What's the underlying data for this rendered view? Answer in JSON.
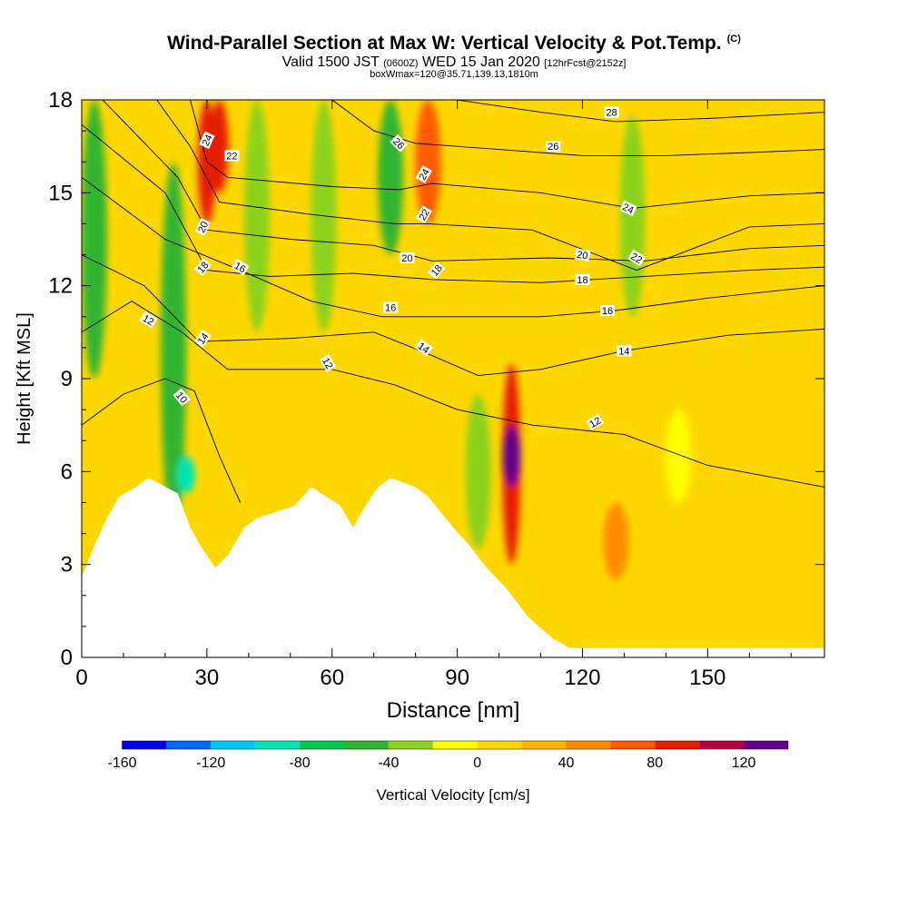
{
  "title": {
    "main": "Wind-Parallel Section at Max W: Vertical Velocity & Pot.Temp.",
    "copyright": "(C)",
    "valid_prefix": "Valid 1500 JST",
    "valid_utc": "(0600Z)",
    "valid_suffix": "WED 15 Jan 2020",
    "forecast": "[12hrFcst@2152z]",
    "box_info": "boxWmax=120@35.71,139.13,1810m"
  },
  "chart_data": {
    "type": "heatmap",
    "xlabel": "Distance [nm]",
    "ylabel": "Height [Kft MSL]",
    "xlim": [
      0,
      178
    ],
    "ylim": [
      0,
      18
    ],
    "x_ticks": [
      0,
      30,
      60,
      90,
      120,
      150
    ],
    "y_ticks": [
      0,
      3,
      6,
      9,
      12,
      15,
      18
    ],
    "colorbar": {
      "label": "Vertical Velocity [cm/s]",
      "min": -160,
      "max": 140,
      "step": 20,
      "tick_labels": [
        -160,
        -120,
        -80,
        -40,
        0,
        40,
        80,
        120
      ],
      "colors": [
        "#0000ff",
        "#0066ff",
        "#00c8ff",
        "#00e6b4",
        "#00c850",
        "#32b432",
        "#8cd21e",
        "#ffff00",
        "#ffd700",
        "#ffb400",
        "#ff8c00",
        "#ff5a00",
        "#e61e00",
        "#b4003c",
        "#64008c"
      ]
    },
    "vertical_velocity_features": [
      {
        "x": 3,
        "height_range": [
          9,
          18
        ],
        "value": -60
      },
      {
        "x": 22,
        "height_range": [
          4,
          16
        ],
        "value": -60
      },
      {
        "x": 25,
        "height_range": [
          5.3,
          6.5
        ],
        "value": -90
      },
      {
        "x": 30,
        "height_range": [
          14,
          18
        ],
        "value": 80
      },
      {
        "x": 33,
        "height_range": [
          15,
          18
        ],
        "value": 80
      },
      {
        "x": 42,
        "height_range": [
          10.5,
          18
        ],
        "value": -40
      },
      {
        "x": 58,
        "height_range": [
          10.5,
          18
        ],
        "value": -40
      },
      {
        "x": 74,
        "height_range": [
          13,
          18
        ],
        "value": -50
      },
      {
        "x": 83,
        "height_range": [
          14,
          18
        ],
        "value": 70
      },
      {
        "x": 95,
        "height_range": [
          3.5,
          8.5
        ],
        "value": -30
      },
      {
        "x": 103,
        "height_range": [
          3,
          9.5
        ],
        "value": 90
      },
      {
        "x": 103,
        "height_range": [
          5.5,
          7.5
        ],
        "value": 120
      },
      {
        "x": 128,
        "height_range": [
          2.5,
          5
        ],
        "value": 50
      },
      {
        "x": 132,
        "height_range": [
          11,
          17.5
        ],
        "value": -30
      },
      {
        "x": 143,
        "height_range": [
          5,
          8
        ],
        "value": -20
      },
      {
        "x": 175,
        "height_range": [
          11,
          17
        ],
        "value": 10
      }
    ],
    "terrain_top": [
      {
        "x": 0,
        "y": 2.6
      },
      {
        "x": 3,
        "y": 3.6
      },
      {
        "x": 6,
        "y": 4.5
      },
      {
        "x": 9,
        "y": 5.2
      },
      {
        "x": 13,
        "y": 5.5
      },
      {
        "x": 16,
        "y": 5.8
      },
      {
        "x": 23,
        "y": 5.3
      },
      {
        "x": 26,
        "y": 4.2
      },
      {
        "x": 28.5,
        "y": 3.6
      },
      {
        "x": 32,
        "y": 2.9
      },
      {
        "x": 35,
        "y": 3.3
      },
      {
        "x": 39,
        "y": 4.2
      },
      {
        "x": 42,
        "y": 4.5
      },
      {
        "x": 51,
        "y": 4.9
      },
      {
        "x": 55,
        "y": 5.5
      },
      {
        "x": 62,
        "y": 4.9
      },
      {
        "x": 65,
        "y": 4.2
      },
      {
        "x": 68,
        "y": 4.9
      },
      {
        "x": 71,
        "y": 5.5
      },
      {
        "x": 74,
        "y": 5.8
      },
      {
        "x": 80,
        "y": 5.5
      },
      {
        "x": 83,
        "y": 5.2
      },
      {
        "x": 89,
        "y": 4.2
      },
      {
        "x": 93,
        "y": 3.6
      },
      {
        "x": 97,
        "y": 2.9
      },
      {
        "x": 102,
        "y": 2.2
      },
      {
        "x": 107,
        "y": 1.3
      },
      {
        "x": 113,
        "y": 0.6
      },
      {
        "x": 117,
        "y": 0.3
      },
      {
        "x": 178,
        "y": 0.3
      }
    ],
    "theta_contours": [
      {
        "label": "10",
        "points": [
          [
            0,
            7.5
          ],
          [
            10,
            8.5
          ],
          [
            20,
            9
          ],
          [
            27,
            8.6
          ],
          [
            33,
            6.5
          ],
          [
            38,
            5
          ]
        ]
      },
      {
        "label": "12",
        "points": [
          [
            0,
            10.5
          ],
          [
            12,
            11.5
          ],
          [
            24,
            10.5
          ],
          [
            35,
            9.3
          ],
          [
            50,
            9.3
          ],
          [
            60,
            9.3
          ],
          [
            75,
            8.8
          ],
          [
            90,
            8.0
          ],
          [
            108,
            7.5
          ],
          [
            130,
            7.2
          ],
          [
            150,
            6.2
          ],
          [
            178,
            5.5
          ]
        ]
      },
      {
        "label": "14",
        "points": [
          [
            0,
            13
          ],
          [
            15,
            12
          ],
          [
            28,
            10.2
          ],
          [
            50,
            10.3
          ],
          [
            70,
            10.5
          ],
          [
            83,
            9.8
          ],
          [
            95,
            9.1
          ],
          [
            110,
            9.3
          ],
          [
            130,
            9.9
          ],
          [
            155,
            10.4
          ],
          [
            178,
            10.6
          ]
        ]
      },
      {
        "label": "16",
        "points": [
          [
            0,
            15.5
          ],
          [
            20,
            13.5
          ],
          [
            38,
            12.5
          ],
          [
            55,
            11.5
          ],
          [
            72,
            11
          ],
          [
            90,
            11
          ],
          [
            110,
            11
          ],
          [
            128,
            11.2
          ],
          [
            150,
            11.6
          ],
          [
            178,
            12
          ]
        ]
      },
      {
        "label": "18",
        "points": [
          [
            0,
            17.2
          ],
          [
            20,
            15
          ],
          [
            30,
            12.5
          ],
          [
            45,
            12.3
          ],
          [
            65,
            12.4
          ],
          [
            84,
            12.2
          ],
          [
            110,
            12.1
          ],
          [
            135,
            12.3
          ],
          [
            160,
            12.5
          ],
          [
            178,
            12.6
          ]
        ]
      },
      {
        "label": "20",
        "points": [
          [
            5,
            18
          ],
          [
            23,
            15.5
          ],
          [
            30,
            13.8
          ],
          [
            50,
            13.5
          ],
          [
            70,
            13.3
          ],
          [
            84,
            12.8
          ],
          [
            112,
            12.9
          ],
          [
            135,
            12.8
          ],
          [
            160,
            13.2
          ],
          [
            178,
            13.3
          ]
        ]
      },
      {
        "label": "22",
        "points": [
          [
            18,
            18
          ],
          [
            26,
            16.5
          ],
          [
            33,
            14.7
          ],
          [
            55,
            14.3
          ],
          [
            75,
            14
          ],
          [
            83,
            14
          ],
          [
            108,
            13.8
          ],
          [
            133,
            12.5
          ],
          [
            160,
            13.9
          ],
          [
            178,
            14
          ]
        ]
      },
      {
        "label": "24",
        "points": [
          [
            26,
            18
          ],
          [
            30,
            16
          ],
          [
            35,
            15.5
          ],
          [
            60,
            15.2
          ],
          [
            76,
            15.1
          ],
          [
            84,
            15.3
          ],
          [
            110,
            15
          ],
          [
            132,
            14.5
          ],
          [
            160,
            14.9
          ],
          [
            178,
            15
          ]
        ]
      },
      {
        "label": "26",
        "points": [
          [
            60,
            18
          ],
          [
            70,
            17
          ],
          [
            80,
            16.6
          ],
          [
            100,
            16.4
          ],
          [
            120,
            16.2
          ],
          [
            140,
            16.2
          ],
          [
            160,
            16.3
          ],
          [
            178,
            16.4
          ]
        ]
      },
      {
        "label": "28",
        "points": [
          [
            90,
            18
          ],
          [
            110,
            17.6
          ],
          [
            128,
            17.3
          ],
          [
            150,
            17.4
          ],
          [
            178,
            17.6
          ]
        ]
      }
    ],
    "contour_labels": [
      {
        "text": "10",
        "x": 24,
        "y": 8.4,
        "angle": 50
      },
      {
        "text": "12",
        "x": 16,
        "y": 10.9,
        "angle": 30
      },
      {
        "text": "12",
        "x": 59,
        "y": 9.5,
        "angle": 60
      },
      {
        "text": "12",
        "x": 123,
        "y": 7.6,
        "angle": -30
      },
      {
        "text": "14",
        "x": 29,
        "y": 10.3,
        "angle": -55
      },
      {
        "text": "14",
        "x": 82,
        "y": 10.0,
        "angle": 35
      },
      {
        "text": "14",
        "x": 130,
        "y": 9.9,
        "angle": 0
      },
      {
        "text": "16",
        "x": 38,
        "y": 12.6,
        "angle": 30
      },
      {
        "text": "16",
        "x": 74,
        "y": 11.3,
        "angle": 0
      },
      {
        "text": "16",
        "x": 126,
        "y": 11.2,
        "angle": 0
      },
      {
        "text": "18",
        "x": 29,
        "y": 12.6,
        "angle": -50
      },
      {
        "text": "18",
        "x": 85,
        "y": 12.5,
        "angle": -50
      },
      {
        "text": "18",
        "x": 120,
        "y": 12.2,
        "angle": 0
      },
      {
        "text": "20",
        "x": 29,
        "y": 13.9,
        "angle": -65
      },
      {
        "text": "20",
        "x": 78,
        "y": 12.9,
        "angle": 0
      },
      {
        "text": "20",
        "x": 120,
        "y": 13.0,
        "angle": 10
      },
      {
        "text": "22",
        "x": 36,
        "y": 16.2,
        "angle": 0
      },
      {
        "text": "22",
        "x": 82,
        "y": 14.3,
        "angle": -60
      },
      {
        "text": "22",
        "x": 133,
        "y": 12.9,
        "angle": 30
      },
      {
        "text": "24",
        "x": 30,
        "y": 16.7,
        "angle": -65
      },
      {
        "text": "24",
        "x": 82,
        "y": 15.6,
        "angle": -60
      },
      {
        "text": "24",
        "x": 131,
        "y": 14.5,
        "angle": 25
      },
      {
        "text": "26",
        "x": 76,
        "y": 16.6,
        "angle": 45
      },
      {
        "text": "26",
        "x": 113,
        "y": 16.5,
        "angle": 0
      },
      {
        "text": "28",
        "x": 127,
        "y": 17.6,
        "angle": 0
      }
    ]
  }
}
